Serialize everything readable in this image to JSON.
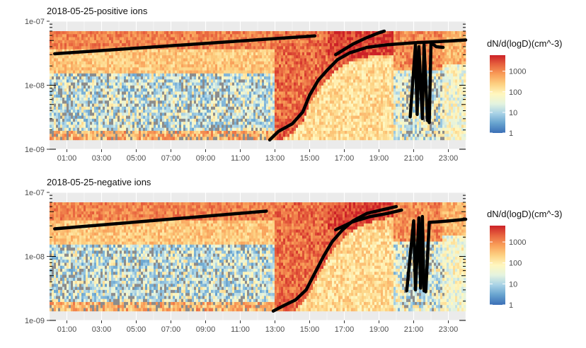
{
  "chart_data": [
    {
      "type": "heatmap",
      "title": "2018-05-25-positive ions",
      "xlabel": "",
      "ylabel": "",
      "x_ticks": [
        "01:00",
        "03:00",
        "05:00",
        "07:00",
        "09:00",
        "11:00",
        "13:00",
        "15:00",
        "17:00",
        "19:00",
        "21:00",
        "23:00"
      ],
      "x_range_hours": [
        0,
        24
      ],
      "y_ticks": [
        "1e-09",
        "1e-08",
        "1e-07"
      ],
      "y_scale": "log",
      "y_range_m": [
        1e-09,
        1e-07
      ],
      "data_extent_m": [
        1.4e-09,
        7e-08
      ],
      "grid": true,
      "legend": {
        "title": "dN/d(logD)(cm^-3)",
        "position": "right",
        "ticks": [
          "1",
          "10",
          "100",
          "1000"
        ],
        "scale": "log",
        "range": [
          1,
          6000
        ],
        "colors": [
          "#3b6fb6",
          "#67a3cf",
          "#a8d2e6",
          "#e4f3df",
          "#fff7bf",
          "#fdd283",
          "#f9a05a",
          "#e8653f",
          "#cc2127"
        ]
      },
      "overlay_lines": [
        {
          "x": [
            0.3,
            15.3
          ],
          "y": [
            3.1e-08,
            5.9e-08
          ]
        },
        {
          "x": [
            12.7,
            13.2,
            14.0,
            14.6,
            15.0,
            15.5,
            16.0,
            16.6,
            17.3,
            18.3,
            19.5,
            21.0,
            22.5,
            24.0
          ],
          "y": [
            1.4e-09,
            1.9e-09,
            2.5e-09,
            3.8e-09,
            7e-09,
            1.2e-08,
            1.7e-08,
            2.5e-08,
            3.2e-08,
            3.9e-08,
            4.3e-08,
            4.6e-08,
            4.8e-08,
            5.1e-08
          ]
        },
        {
          "x": [
            16.5,
            17.5,
            18.2,
            19.0,
            19.3
          ],
          "y": [
            3e-08,
            4.4e-08,
            5.4e-08,
            6.6e-08,
            7e-08
          ]
        },
        {
          "x": [
            20.8,
            21.1,
            21.2,
            21.3,
            21.5,
            21.6,
            21.8
          ],
          "y": [
            3.2e-09,
            4.2e-08,
            3.5e-09,
            4e-08,
            3e-09,
            4.3e-08,
            2.8e-09
          ]
        },
        {
          "x": [
            21.9,
            22.0,
            22.3,
            22.7
          ],
          "y": [
            2.6e-09,
            4.6e-08,
            4e-08,
            3.9e-08
          ]
        }
      ]
    },
    {
      "type": "heatmap",
      "title": "2018-05-25-negative ions",
      "xlabel": "",
      "ylabel": "",
      "x_ticks": [
        "01:00",
        "03:00",
        "05:00",
        "07:00",
        "09:00",
        "11:00",
        "13:00",
        "15:00",
        "17:00",
        "19:00",
        "21:00",
        "23:00"
      ],
      "x_range_hours": [
        0,
        24
      ],
      "y_ticks": [
        "1e-09",
        "1e-08",
        "1e-07"
      ],
      "y_scale": "log",
      "y_range_m": [
        1e-09,
        1e-07
      ],
      "data_extent_m": [
        1.4e-09,
        7e-08
      ],
      "grid": true,
      "legend": {
        "title": "dN/d(logD)(cm^-3)",
        "position": "right",
        "ticks": [
          "1",
          "10",
          "100",
          "1000"
        ],
        "scale": "log",
        "range": [
          1,
          6000
        ],
        "colors": [
          "#3b6fb6",
          "#67a3cf",
          "#a8d2e6",
          "#e4f3df",
          "#fff7bf",
          "#fdd283",
          "#f9a05a",
          "#e8653f",
          "#cc2127"
        ]
      },
      "overlay_lines": [
        {
          "x": [
            0.3,
            12.5
          ],
          "y": [
            2.7e-08,
            5.1e-08
          ]
        },
        {
          "x": [
            12.9,
            13.5,
            14.2,
            14.8,
            15.3,
            15.8,
            16.3,
            16.9,
            17.5,
            18.3,
            19.5,
            20.0
          ],
          "y": [
            1.4e-09,
            1.7e-09,
            2.1e-09,
            3e-09,
            5.5e-09,
            1e-08,
            1.7e-08,
            2.6e-08,
            3.6e-08,
            4.7e-08,
            5.6e-08,
            6e-08
          ]
        },
        {
          "x": [
            16.5,
            17.5,
            18.5,
            19.5,
            20.3
          ],
          "y": [
            2.6e-08,
            3.5e-08,
            4.2e-08,
            4.7e-08,
            5.3e-08
          ]
        },
        {
          "x": [
            20.6,
            21.0,
            21.1,
            21.3,
            21.4,
            21.5,
            21.6
          ],
          "y": [
            2.9e-09,
            3.6e-08,
            3e-09,
            4e-08,
            3.2e-09,
            4.2e-08,
            2.9e-09
          ]
        },
        {
          "x": [
            21.7,
            21.9,
            22.6,
            24.0
          ],
          "y": [
            2.8e-09,
            3.4e-08,
            3.5e-08,
            3.8e-08
          ]
        }
      ]
    }
  ]
}
